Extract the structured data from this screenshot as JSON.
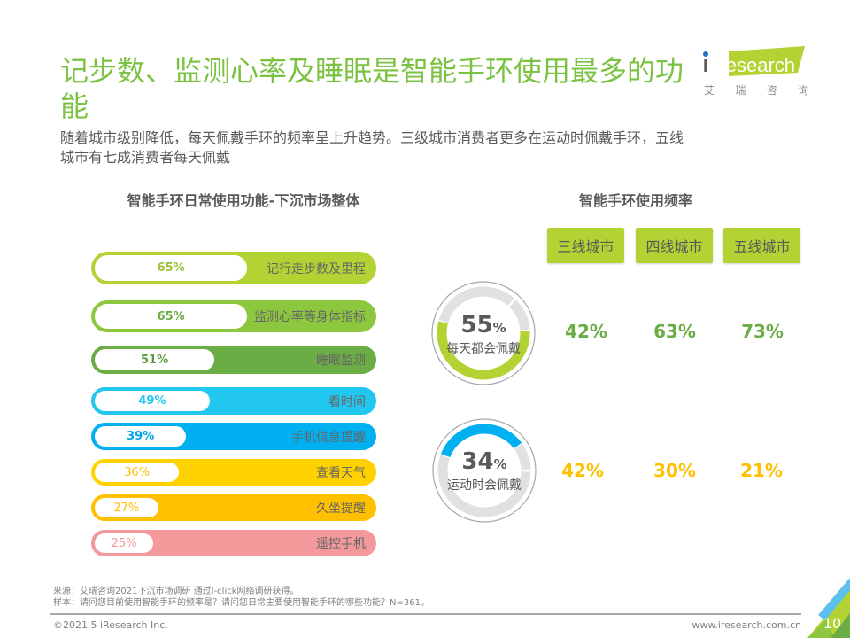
{
  "header": {
    "title": "记步数、监测心率及睡眠是智能手环使用最多的功能",
    "subtitle": "随着城市级别降低，每天佩戴手环的频率呈上升趋势。三级城市消费者更多在运动时佩戴手环，五线城市有七成消费者每天佩戴"
  },
  "logo": {
    "brand": "iResearch",
    "chinese": [
      "艾",
      "瑞",
      "咨",
      "询"
    ],
    "brand_color": "#b3d234",
    "dot_color": "#1f6fc4"
  },
  "chart_data": [
    {
      "type": "bar",
      "orientation": "horizontal",
      "title": "智能手环日常使用功能-下沉市场整体",
      "categories": [
        "记行走步数及里程",
        "监测心率等身体指标",
        "睡眠监测",
        "看时间",
        "手机信息提醒",
        "查看天气",
        "久坐提醒",
        "遥控手机"
      ],
      "values": [
        65,
        65,
        51,
        49,
        39,
        36,
        27,
        25
      ],
      "value_labels": [
        "65%",
        "65%",
        "51%",
        "49%",
        "39%",
        "36%",
        "27%",
        "25%"
      ],
      "unit": "%",
      "xlim": [
        0,
        100
      ],
      "colors": [
        "#b3d234",
        "#8dc63f",
        "#6aad45",
        "#22c7f0",
        "#00b0f0",
        "#ffd100",
        "#ffc000",
        "#f4999b"
      ],
      "label_colors": [
        "#9cc43a",
        "#6aad45",
        "#5a9e3c",
        "#22c7f0",
        "#00a6e6",
        "#ffc000",
        "#ffc000",
        "#f4999b"
      ]
    },
    {
      "type": "table",
      "title": "智能手环使用频率",
      "columns": [
        "三线城市",
        "四线城市",
        "五线城市"
      ],
      "rows": [
        {
          "label": "每天都会佩戴",
          "overall": 55,
          "percent_sign": "%",
          "values": [
            42,
            63,
            73
          ],
          "value_labels": [
            "42%",
            "63%",
            "73%"
          ],
          "ring_color": "#b3d234",
          "value_color": "#6aad45"
        },
        {
          "label": "运动时会佩戴",
          "overall": 34,
          "percent_sign": "%",
          "values": [
            42,
            30,
            21
          ],
          "value_labels": [
            "42%",
            "30%",
            "21%"
          ],
          "ring_color": "#00b0f0",
          "value_color": "#ffc000"
        }
      ]
    }
  ],
  "footer": {
    "source": "来源：艾瑞咨询2021下沉市场调研 通过I-click网络调研获得。",
    "sample": "样本：请问您目前使用智能手环的频率是？请问您日常主要使用智能手环的哪些功能？N=361。",
    "copyright": "©2021.5 iResearch Inc.",
    "url": "www.iresearch.com.cn",
    "page": "10"
  }
}
